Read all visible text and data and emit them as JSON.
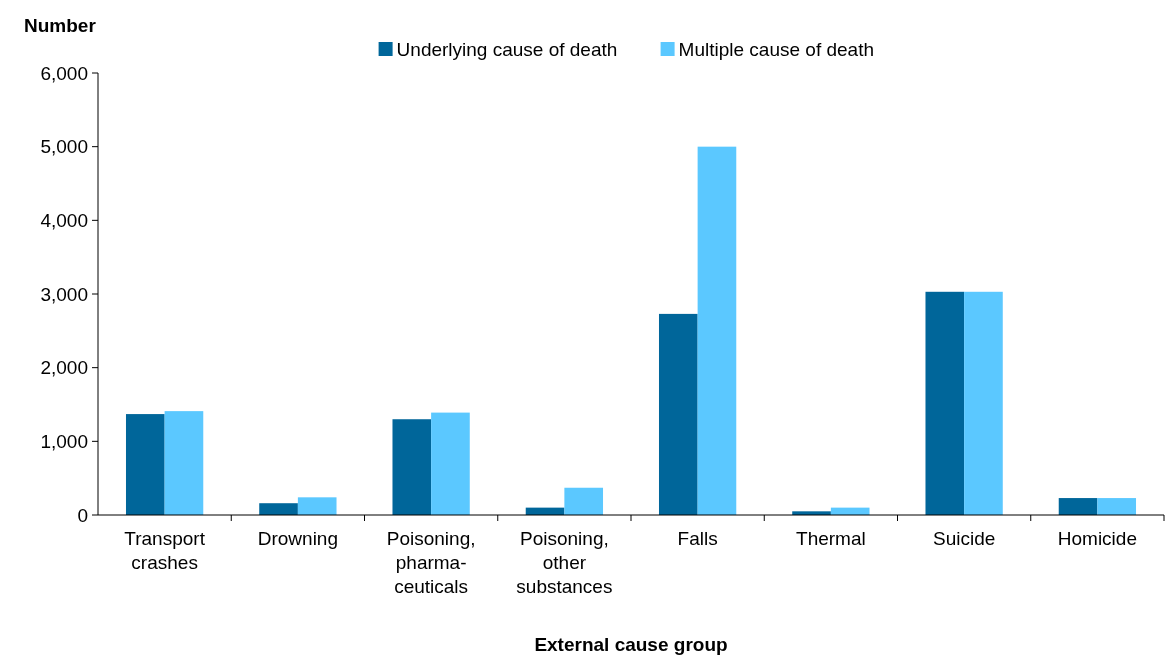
{
  "chart_data": {
    "type": "bar",
    "ylabel": "Number",
    "xlabel": "External cause group",
    "categories": [
      "Transport\ncrashes",
      "Drowning",
      "Poisoning,\npharma-\nceuticals",
      "Poisoning,\nother\nsubstances",
      "Falls",
      "Thermal",
      "Suicide",
      "Homicide"
    ],
    "series": [
      {
        "name": "Underlying cause of death",
        "color": "#00669a",
        "values": [
          1370,
          160,
          1300,
          100,
          2730,
          50,
          3030,
          230
        ]
      },
      {
        "name": "Multiple cause of death",
        "color": "#5bc8ff",
        "values": [
          1410,
          240,
          1390,
          370,
          5000,
          100,
          3030,
          230
        ]
      }
    ],
    "ylim": [
      0,
      6000
    ],
    "yticks": [
      {
        "value": 0,
        "label": "0"
      },
      {
        "value": 1000,
        "label": "1,000"
      },
      {
        "value": 2000,
        "label": "2,000"
      },
      {
        "value": 3000,
        "label": "3,000"
      },
      {
        "value": 4000,
        "label": "4,000"
      },
      {
        "value": 5000,
        "label": "5,000"
      },
      {
        "value": 6000,
        "label": "6,000"
      }
    ],
    "grid": false,
    "legend": "top"
  }
}
